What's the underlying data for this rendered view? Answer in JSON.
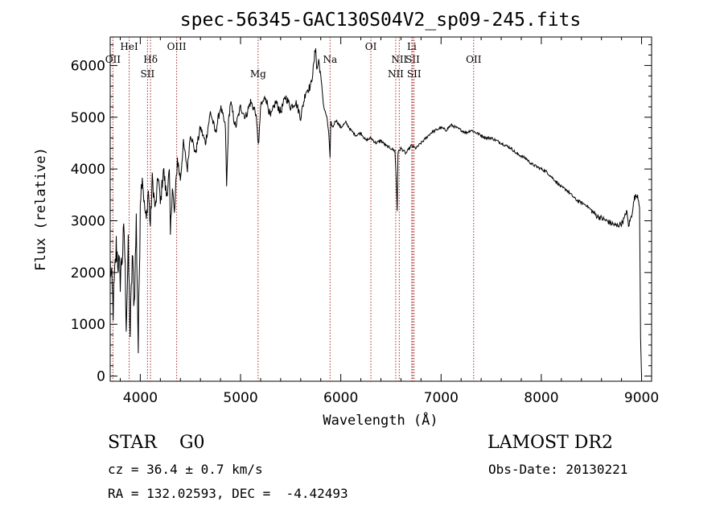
{
  "chart_data": {
    "type": "line",
    "title": "spec-56345-GAC130S04V2_sp09-245.fits",
    "xlabel": "Wavelength (Å)",
    "ylabel": "Flux (relative)",
    "xlim": [
      3700,
      9100
    ],
    "ylim": [
      -100,
      6550
    ],
    "x_ticks": [
      4000,
      5000,
      6000,
      7000,
      8000,
      9000
    ],
    "x_tick_labels": [
      "4000",
      "5000",
      "6000",
      "7000",
      "8000",
      "9000"
    ],
    "y_ticks": [
      0,
      1000,
      2000,
      3000,
      4000,
      5000,
      6000
    ],
    "y_tick_labels": [
      "0",
      "1000",
      "2000",
      "3000",
      "4000",
      "5000",
      "6000"
    ],
    "grid": false,
    "series": [
      {
        "name": "spectrum",
        "x": [
          3700,
          3730,
          3760,
          3800,
          3840,
          3860,
          3880,
          3900,
          3920,
          3940,
          3960,
          3980,
          4000,
          4020,
          4040,
          4060,
          4080,
          4100,
          4120,
          4150,
          4180,
          4200,
          4230,
          4260,
          4290,
          4300,
          4320,
          4340,
          4370,
          4400,
          4430,
          4470,
          4500,
          4550,
          4600,
          4650,
          4700,
          4750,
          4800,
          4850,
          4861,
          4880,
          4900,
          4950,
          5000,
          5050,
          5100,
          5150,
          5172,
          5183,
          5200,
          5250,
          5300,
          5350,
          5400,
          5450,
          5500,
          5550,
          5600,
          5650,
          5700,
          5730,
          5750,
          5760,
          5780,
          5800,
          5830,
          5860,
          5880,
          5893,
          5900,
          5920,
          5950,
          6000,
          6050,
          6100,
          6150,
          6200,
          6250,
          6300,
          6350,
          6400,
          6450,
          6500,
          6540,
          6555,
          6563,
          6570,
          6580,
          6600,
          6650,
          6700,
          6750,
          6800,
          6850,
          6900,
          6950,
          7000,
          7050,
          7100,
          7150,
          7200,
          7250,
          7300,
          7350,
          7400,
          7450,
          7500,
          7550,
          7600,
          7650,
          7700,
          7750,
          7800,
          7850,
          7900,
          7950,
          8000,
          8050,
          8100,
          8150,
          8200,
          8250,
          8300,
          8350,
          8400,
          8450,
          8500,
          8550,
          8600,
          8650,
          8700,
          8750,
          8800,
          8830,
          8850,
          8870,
          8900,
          8930,
          8960,
          8980,
          8990,
          9000
        ],
        "y": [
          2200,
          1300,
          2500,
          1900,
          2800,
          1100,
          2400,
          800,
          2300,
          1400,
          3000,
          500,
          3400,
          3900,
          3300,
          3000,
          3600,
          2900,
          3800,
          3200,
          3900,
          3300,
          4000,
          3500,
          3900,
          2700,
          3700,
          3100,
          4200,
          3800,
          4500,
          4000,
          4700,
          4300,
          4800,
          4500,
          5100,
          4700,
          5200,
          4800,
          3650,
          4900,
          5300,
          4800,
          5200,
          5000,
          5300,
          5100,
          4600,
          4500,
          5200,
          5400,
          5000,
          5300,
          5100,
          5400,
          5200,
          5300,
          5000,
          5500,
          5600,
          6000,
          6400,
          5900,
          6100,
          5800,
          5200,
          5000,
          4700,
          4200,
          4900,
          4800,
          4950,
          4800,
          4900,
          4750,
          4650,
          4700,
          4550,
          4600,
          4500,
          4550,
          4450,
          4400,
          4350,
          3700,
          3200,
          4300,
          4350,
          4400,
          4300,
          4450,
          4400,
          4500,
          4600,
          4700,
          4750,
          4800,
          4750,
          4850,
          4800,
          4750,
          4700,
          4750,
          4700,
          4650,
          4600,
          4600,
          4550,
          4500,
          4450,
          4400,
          4300,
          4250,
          4200,
          4100,
          4050,
          4000,
          3950,
          3850,
          3750,
          3650,
          3600,
          3500,
          3400,
          3350,
          3300,
          3200,
          3100,
          3050,
          3000,
          2950,
          2900,
          2950,
          3050,
          3200,
          2900,
          3100,
          3450,
          3500,
          3300,
          700,
          0
        ]
      }
    ],
    "lines": [
      {
        "label": "OII",
        "x": 3727,
        "row": 2
      },
      {
        "label": "HeI",
        "x": 3889,
        "row": 1
      },
      {
        "label": "Hδ",
        "x": 4102,
        "row": 2
      },
      {
        "label": "SII",
        "x": 4072,
        "row": 3
      },
      {
        "label": "OIII",
        "x": 4363,
        "row": 1
      },
      {
        "label": "Mg",
        "x": 5175,
        "row": 3
      },
      {
        "label": "Na",
        "x": 5893,
        "row": 2
      },
      {
        "label": "OI",
        "x": 6300,
        "row": 1
      },
      {
        "label": "NII",
        "x": 6548,
        "row": 3
      },
      {
        "label": "NII",
        "x": 6583,
        "row": 2
      },
      {
        "label": "Li",
        "x": 6708,
        "row": 1
      },
      {
        "label": "SII",
        "x": 6717,
        "row": 2
      },
      {
        "label": "SII",
        "x": 6731,
        "row": 3
      },
      {
        "label": "OII",
        "x": 7325,
        "row": 2
      }
    ]
  },
  "info": {
    "class_text": "STAR    G0",
    "survey": "LAMOST DR2",
    "cz_text": "cz = 36.4 ± 0.7 km/s",
    "obs_date": "Obs-Date: 20130221",
    "radec": "RA = 132.02593, DEC =  -4.42493"
  },
  "colors": {
    "line_marker": "#a52a2a",
    "spectrum": "#000000"
  }
}
